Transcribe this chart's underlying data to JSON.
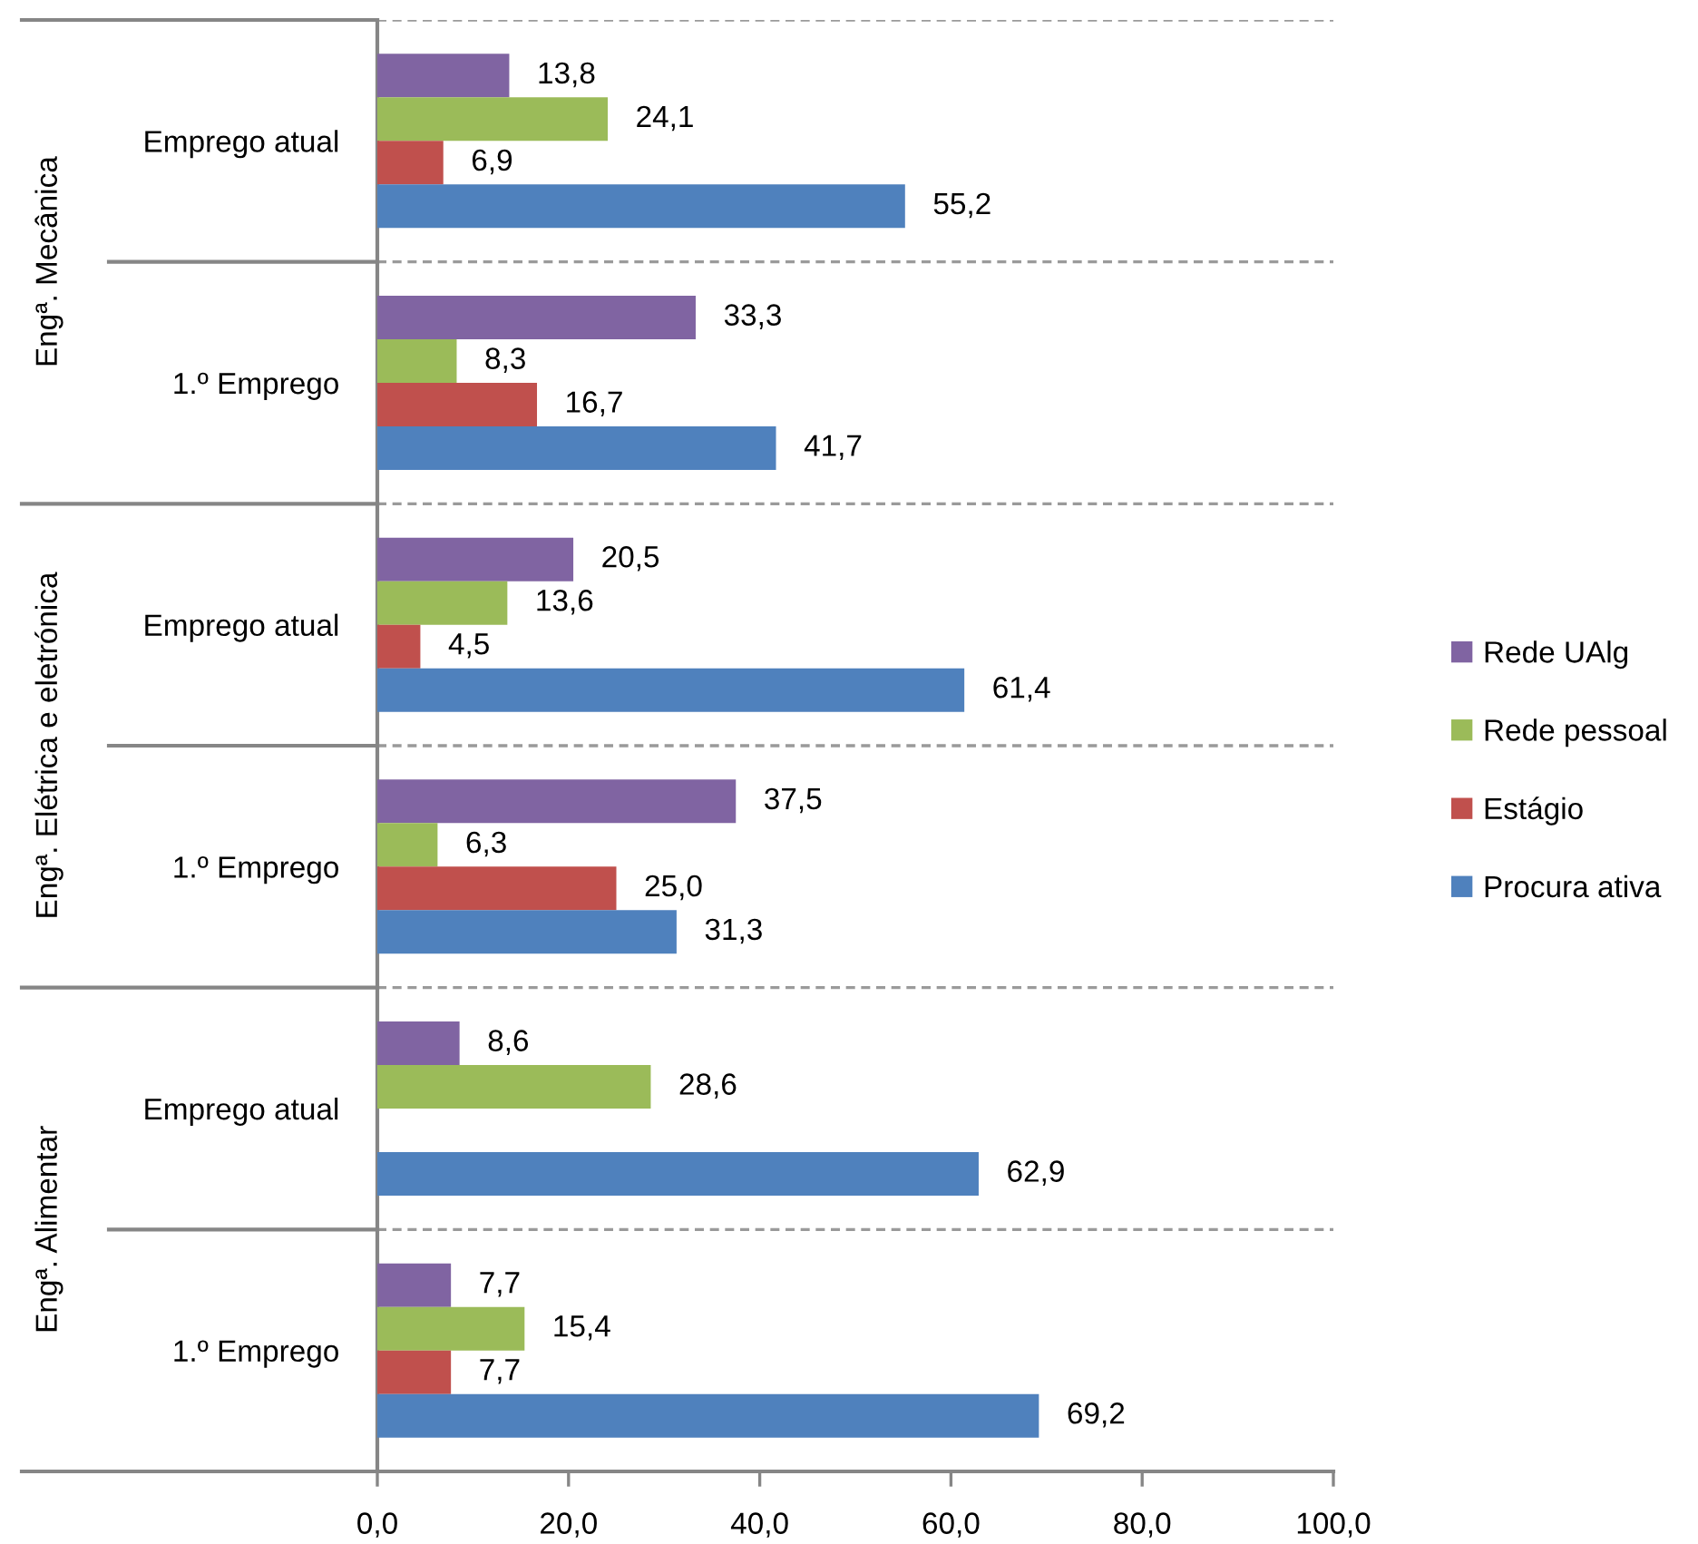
{
  "chart_data": {
    "type": "bar",
    "orientation": "horizontal",
    "categories": [
      "Emprego atual",
      "1.º Emprego",
      "Emprego atual",
      "1.º Emprego",
      "Emprego atual",
      "1.º Emprego"
    ],
    "annotations": [
      "Engª. Mecânica",
      "Engª. Elétrica e eletrónica",
      "Engª. Alimentar"
    ],
    "series": [
      {
        "name": "Rede UAlg",
        "color": "#8064a2",
        "values": [
          13.8,
          33.3,
          20.5,
          37.5,
          8.6,
          7.7
        ],
        "value_labels": [
          "13,8",
          "33,3",
          "20,5",
          "37,5",
          "8,6",
          "7,7"
        ]
      },
      {
        "name": "Rede pessoal",
        "color": "#9bbb59",
        "values": [
          24.1,
          8.3,
          13.6,
          6.3,
          28.6,
          15.4
        ],
        "value_labels": [
          "24,1",
          "8,3",
          "13,6",
          "6,3",
          "28,6",
          "15,4"
        ]
      },
      {
        "name": "Estágio",
        "color": "#c0504d",
        "values": [
          6.9,
          16.7,
          4.5,
          25.0,
          null,
          7.7
        ],
        "value_labels": [
          "6,9",
          "16,7",
          "4,5",
          "25,0",
          null,
          "7,7"
        ]
      },
      {
        "name": "Procura ativa",
        "color": "#4f81bd",
        "values": [
          55.2,
          41.7,
          61.4,
          31.3,
          62.9,
          69.2
        ],
        "value_labels": [
          "55,2",
          "41,7",
          "61,4",
          "31,3",
          "62,9",
          "69,2"
        ]
      }
    ],
    "xlim": [
      0,
      100
    ],
    "xticks": [
      {
        "value": 0,
        "label": "0,0"
      },
      {
        "value": 20,
        "label": "20,0"
      },
      {
        "value": 40,
        "label": "40,0"
      },
      {
        "value": 60,
        "label": "60,0"
      },
      {
        "value": 80,
        "label": "80,0"
      },
      {
        "value": 100,
        "label": "100,0"
      }
    ],
    "grid": "y",
    "legend": "right"
  }
}
